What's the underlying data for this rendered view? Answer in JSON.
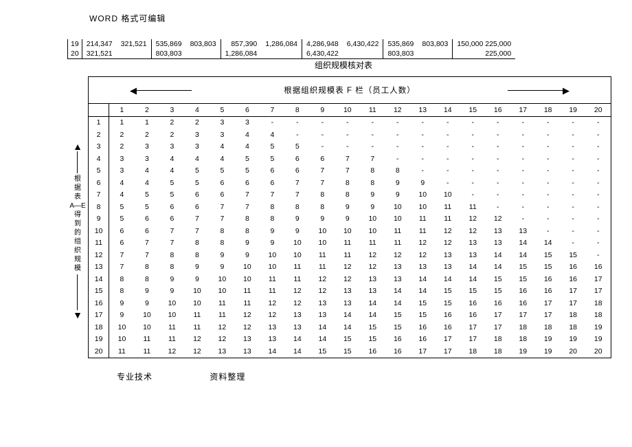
{
  "header": "WORD 格式可编辑",
  "top_rows": [
    {
      "idx": "19",
      "cells": [
        "214,347",
        "321,521",
        "535,869",
        "803,803",
        "857,390",
        "1,286,084",
        "4,286,948",
        "6,430,422",
        "535,869",
        "803,803",
        "150,000 225,000"
      ]
    },
    {
      "idx": "20",
      "cells": [
        "321,521",
        "",
        "803,803",
        "",
        "1,286,084",
        "",
        "6,430,422",
        "",
        "803,803",
        "",
        "225,000"
      ]
    }
  ],
  "title2": "组织规模核对表",
  "main_header": "根据组织规模表   F 栏（员工人数）",
  "left_text": [
    "根",
    "据",
    "表",
    "A—E",
    "得",
    "到",
    "的",
    "组",
    "织",
    "规",
    "模"
  ],
  "col_headers": [
    1,
    2,
    3,
    4,
    5,
    6,
    7,
    8,
    9,
    10,
    11,
    12,
    13,
    14,
    15,
    16,
    17,
    18,
    19,
    20
  ],
  "matrix": [
    [
      1,
      1,
      2,
      2,
      3,
      3,
      "-",
      "-",
      "-",
      "-",
      "-",
      "-",
      "-",
      "-",
      "-",
      "-",
      "-",
      "-",
      "-",
      "-"
    ],
    [
      2,
      2,
      2,
      3,
      3,
      4,
      4,
      "-",
      "-",
      "-",
      "-",
      "-",
      "-",
      "-",
      "-",
      "-",
      "-",
      "-",
      "-",
      "-"
    ],
    [
      2,
      3,
      3,
      3,
      4,
      4,
      5,
      5,
      "-",
      "-",
      "-",
      "-",
      "-",
      "-",
      "-",
      "-",
      "-",
      "-",
      "-",
      "-"
    ],
    [
      3,
      3,
      4,
      4,
      4,
      5,
      5,
      6,
      6,
      7,
      7,
      "-",
      "-",
      "-",
      "-",
      "-",
      "-",
      "-",
      "-",
      "-"
    ],
    [
      3,
      4,
      4,
      5,
      5,
      5,
      6,
      6,
      7,
      7,
      8,
      8,
      "-",
      "-",
      "-",
      "-",
      "-",
      "-",
      "-",
      "-"
    ],
    [
      4,
      4,
      5,
      5,
      6,
      6,
      6,
      7,
      7,
      8,
      8,
      9,
      9,
      "-",
      "-",
      "-",
      "-",
      "-",
      "-",
      "-"
    ],
    [
      4,
      5,
      5,
      6,
      6,
      7,
      7,
      7,
      8,
      8,
      9,
      9,
      10,
      10,
      "-",
      "-",
      "-",
      "-",
      "-",
      "-"
    ],
    [
      5,
      5,
      6,
      6,
      7,
      7,
      8,
      8,
      8,
      9,
      9,
      10,
      10,
      11,
      11,
      "-",
      "-",
      "-",
      "-",
      "-"
    ],
    [
      5,
      6,
      6,
      7,
      7,
      8,
      8,
      9,
      9,
      9,
      10,
      10,
      11,
      11,
      12,
      12,
      "-",
      "-",
      "-",
      "-"
    ],
    [
      6,
      6,
      7,
      7,
      8,
      8,
      9,
      9,
      10,
      10,
      10,
      11,
      11,
      12,
      12,
      13,
      13,
      "-",
      "-",
      "-"
    ],
    [
      6,
      7,
      7,
      8,
      8,
      9,
      9,
      10,
      10,
      11,
      11,
      11,
      12,
      12,
      13,
      13,
      14,
      14,
      "-",
      "-"
    ],
    [
      7,
      7,
      8,
      8,
      9,
      9,
      10,
      10,
      11,
      11,
      12,
      12,
      12,
      13,
      13,
      14,
      14,
      15,
      15,
      "-"
    ],
    [
      7,
      8,
      8,
      9,
      9,
      10,
      10,
      11,
      11,
      12,
      12,
      13,
      13,
      13,
      14,
      14,
      15,
      15,
      16,
      16
    ],
    [
      8,
      8,
      9,
      9,
      10,
      10,
      11,
      11,
      12,
      12,
      13,
      13,
      14,
      14,
      14,
      15,
      15,
      16,
      16,
      17
    ],
    [
      8,
      9,
      9,
      10,
      10,
      11,
      11,
      12,
      12,
      13,
      13,
      14,
      14,
      15,
      15,
      15,
      16,
      16,
      17,
      17
    ],
    [
      9,
      9,
      10,
      10,
      11,
      11,
      12,
      12,
      13,
      13,
      14,
      14,
      15,
      15,
      16,
      16,
      16,
      17,
      17,
      18
    ],
    [
      9,
      10,
      10,
      11,
      11,
      12,
      12,
      13,
      13,
      14,
      14,
      15,
      15,
      16,
      16,
      17,
      17,
      17,
      18,
      18
    ],
    [
      10,
      10,
      11,
      11,
      12,
      12,
      13,
      13,
      14,
      14,
      15,
      15,
      16,
      16,
      17,
      17,
      18,
      18,
      18,
      19
    ],
    [
      10,
      11,
      11,
      12,
      12,
      13,
      13,
      14,
      14,
      15,
      15,
      16,
      16,
      17,
      17,
      18,
      18,
      19,
      19,
      19
    ],
    [
      11,
      11,
      12,
      12,
      13,
      13,
      14,
      14,
      15,
      15,
      16,
      16,
      17,
      17,
      18,
      18,
      19,
      19,
      20,
      20
    ]
  ],
  "footer": {
    "a": "专业技术",
    "b": "资料整理"
  }
}
